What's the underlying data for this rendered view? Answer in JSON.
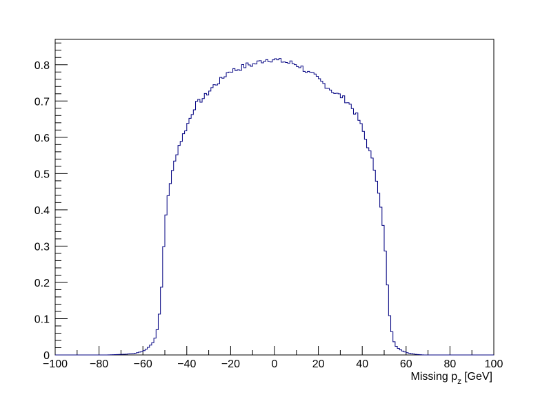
{
  "chart_data": {
    "type": "histogram",
    "xlabel": "Missing p",
    "xlabel_subscript": "z",
    "xlabel_unit": "[GeV]",
    "ylabel": "",
    "xlim": [
      -100,
      100
    ],
    "ylim": [
      0,
      0.87
    ],
    "bin_width": 1,
    "x_ticks": [
      -100,
      -80,
      -60,
      -40,
      -20,
      0,
      20,
      40,
      60,
      80,
      100
    ],
    "x_tick_labels": [
      "−100",
      "−80",
      "−60",
      "−40",
      "−20",
      "0",
      "20",
      "40",
      "60",
      "80",
      "100"
    ],
    "y_ticks": [
      0,
      0.1,
      0.2,
      0.3,
      0.4,
      0.5,
      0.6,
      0.7,
      0.8
    ],
    "y_tick_labels": [
      "0",
      "0.1",
      "0.2",
      "0.3",
      "0.4",
      "0.5",
      "0.6",
      "0.7",
      "0.8"
    ],
    "grid": false,
    "legend": "none",
    "line_color": "#000080",
    "profile_x": [
      -76,
      -72,
      -68,
      -64,
      -62,
      -60,
      -58,
      -56,
      -55,
      -54,
      -53,
      -52,
      -51,
      -50,
      -49,
      -48,
      -46,
      -44,
      -42,
      -40,
      -38,
      -36,
      -34,
      -32,
      -30,
      -28,
      -26,
      -24,
      -22,
      -20,
      -18,
      -16,
      -14,
      -12,
      -10,
      -8,
      -6,
      -4,
      -2,
      0,
      2,
      4,
      6,
      8,
      10,
      12,
      14,
      16,
      18,
      20,
      22,
      24,
      26,
      28,
      30,
      32,
      34,
      36,
      38,
      40,
      42,
      44,
      46,
      47,
      48,
      49,
      50,
      51,
      52,
      53,
      54,
      55,
      56,
      58,
      60,
      62,
      64,
      66,
      68,
      72,
      76
    ],
    "profile_y": [
      0.0,
      0.001,
      0.002,
      0.004,
      0.007,
      0.01,
      0.018,
      0.03,
      0.04,
      0.055,
      0.085,
      0.14,
      0.24,
      0.35,
      0.42,
      0.46,
      0.52,
      0.57,
      0.6,
      0.63,
      0.66,
      0.69,
      0.7,
      0.71,
      0.725,
      0.74,
      0.75,
      0.76,
      0.775,
      0.785,
      0.785,
      0.79,
      0.795,
      0.8,
      0.8,
      0.805,
      0.81,
      0.815,
      0.815,
      0.815,
      0.81,
      0.81,
      0.805,
      0.805,
      0.8,
      0.795,
      0.785,
      0.775,
      0.77,
      0.76,
      0.75,
      0.74,
      0.73,
      0.72,
      0.715,
      0.705,
      0.695,
      0.675,
      0.655,
      0.625,
      0.585,
      0.55,
      0.5,
      0.47,
      0.43,
      0.38,
      0.33,
      0.24,
      0.14,
      0.08,
      0.045,
      0.03,
      0.02,
      0.012,
      0.007,
      0.004,
      0.002,
      0.001,
      0.0,
      0.0,
      0.0
    ]
  }
}
